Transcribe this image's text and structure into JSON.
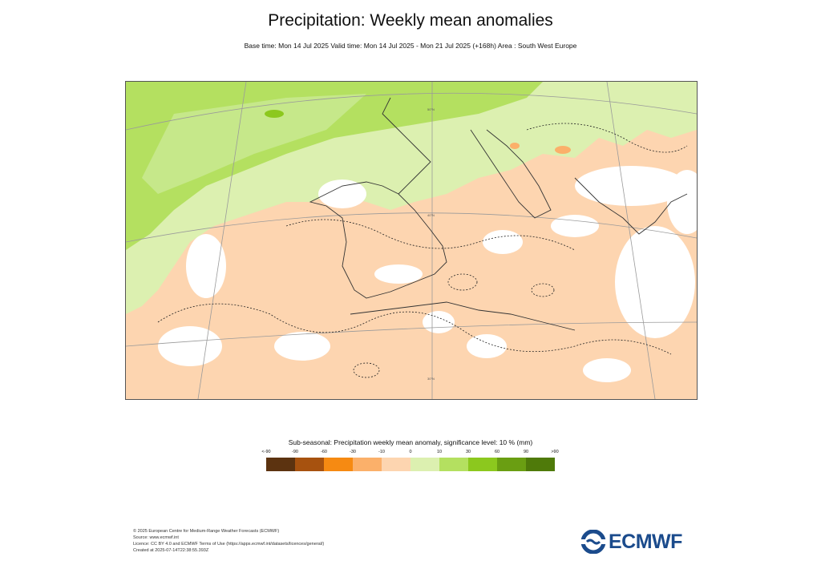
{
  "header": {
    "title": "Precipitation: Weekly mean anomalies",
    "subtitle": "Base time: Mon 14 Jul 2025 Valid time: Mon 14 Jul 2025 - Mon 21 Jul 2025 (+168h) Area : South West Europe"
  },
  "map": {
    "grid_labels": [
      "50°N",
      "40°N",
      "30°N"
    ],
    "dominant_anomaly": "dry (orange) over Iberia, North Africa and the Mediterranean; wet (green) over the Atlantic and northern France"
  },
  "legend": {
    "title": "Sub-seasonal: Precipitation weekly mean anomaly, significance level: 10 % (mm)",
    "ticks": [
      "<-90",
      "-90",
      "-60",
      "-30",
      "-10",
      "0",
      "10",
      "30",
      "60",
      "90",
      ">90"
    ],
    "colors": [
      "#5c3310",
      "#a7520f",
      "#f68a12",
      "#fbb06a",
      "#fdd5b0",
      "#dcf0b0",
      "#b4e060",
      "#8cc81e",
      "#6a9e12",
      "#4f7a0a"
    ]
  },
  "footer": {
    "line1": "© 2025 European Centre for Medium-Range Weather Forecasts (ECMWF)",
    "line2": "Source: www.ecmwf.int",
    "line3": "Licence: CC BY 4.0 and ECMWF Terms of Use (https://apps.ecmwf.int/datasets/licences/general/)",
    "line4": "Created at 2025-07-14T22:38:55.393Z"
  },
  "logo": {
    "text": "ECMWF",
    "color": "#1b4b8c"
  }
}
